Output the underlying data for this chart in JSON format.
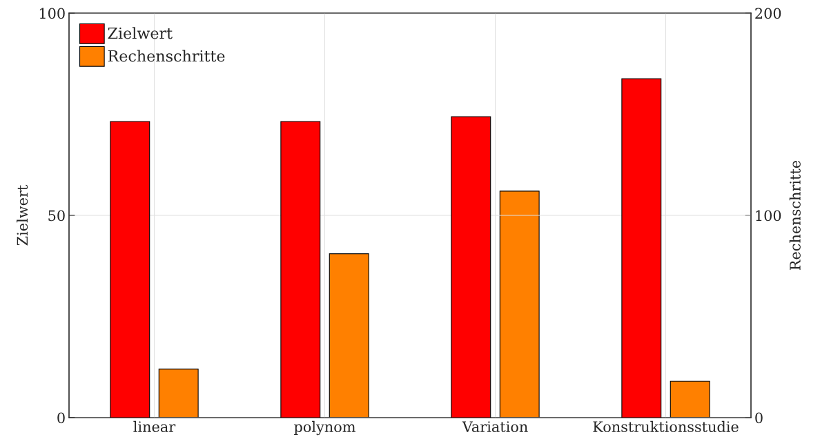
{
  "chart_data": {
    "type": "bar",
    "categories": [
      "linear",
      "polynom",
      "Variation",
      "Konstruktionsstudie"
    ],
    "ylabel": "Zielwert",
    "y2label": "Rechenschritte",
    "series": [
      {
        "name": "Zielwert",
        "color": "#ff0000",
        "values": [
          73.2,
          73.2,
          74.4,
          83.8
        ]
      },
      {
        "name": "Rechenschritte",
        "color": "#ff8000",
        "axis": "y2",
        "values": [
          24,
          81,
          112,
          18
        ]
      }
    ],
    "ylim": [
      0,
      100
    ],
    "yticks": [
      0,
      50,
      100
    ],
    "y2lim": [
      0,
      200
    ],
    "y2ticks": [
      0,
      100,
      200
    ],
    "grid": true,
    "legend": "top left"
  }
}
